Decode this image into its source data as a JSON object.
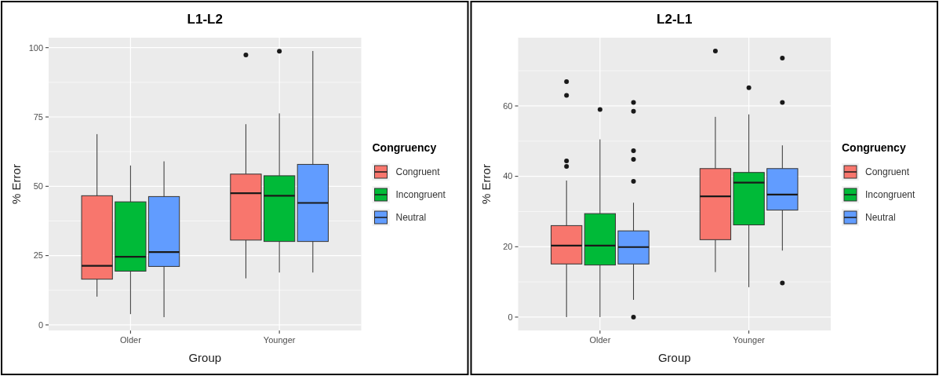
{
  "chart_data": [
    {
      "type": "box",
      "title": "L1-L2",
      "xlabel": "Group",
      "ylabel": "% Error",
      "legend_title": "Congruency",
      "legend": "right",
      "grid": true,
      "categories": [
        "Older",
        "Younger"
      ],
      "ylim": [
        -2,
        103.6
      ],
      "yticks": [
        0,
        25,
        50,
        75,
        100
      ],
      "series": [
        {
          "name": "Congruent",
          "color": "#f8766d",
          "boxes": [
            {
              "low": 10.2,
              "q1": 16.5,
              "median": 21.3,
              "q3": 46.6,
              "high": 68.8
            },
            {
              "low": 16.8,
              "q1": 30.6,
              "median": 47.5,
              "q3": 54.4,
              "high": 72.4,
              "outliers": [
                97.4
              ]
            }
          ]
        },
        {
          "name": "Incongruent",
          "color": "#00ba38",
          "boxes": [
            {
              "low": 3.9,
              "q1": 19.4,
              "median": 24.6,
              "q3": 44.4,
              "high": 57.5
            },
            {
              "low": 18.9,
              "q1": 30.1,
              "median": 46.6,
              "q3": 53.8,
              "high": 76.3,
              "outliers": [
                98.7
              ]
            }
          ]
        },
        {
          "name": "Neutral",
          "color": "#619cff",
          "boxes": [
            {
              "low": 2.8,
              "q1": 21.1,
              "median": 26.3,
              "q3": 46.3,
              "high": 59
            },
            {
              "low": 18.9,
              "q1": 30.1,
              "median": 44,
              "q3": 57.9,
              "high": 98.8
            }
          ]
        }
      ]
    },
    {
      "type": "box",
      "title": "L2-L1",
      "xlabel": "Group",
      "ylabel": "% Error",
      "legend_title": "Congruency",
      "legend": "right",
      "grid": true,
      "categories": [
        "Older",
        "Younger"
      ],
      "ylim": [
        -3.8,
        79.4
      ],
      "yticks": [
        0,
        20,
        40,
        60
      ],
      "series": [
        {
          "name": "Congruent",
          "color": "#f8766d",
          "boxes": [
            {
              "low": 0,
              "q1": 15.1,
              "median": 20.3,
              "q3": 26,
              "high": 38.8,
              "outliers": [
                66.9,
                63,
                44.4,
                42.8
              ]
            },
            {
              "low": 12.8,
              "q1": 22,
              "median": 34.3,
              "q3": 42.2,
              "high": 56.9,
              "outliers": [
                75.6
              ]
            }
          ]
        },
        {
          "name": "Incongruent",
          "color": "#00ba38",
          "boxes": [
            {
              "low": 0,
              "q1": 14.8,
              "median": 20.3,
              "q3": 29.4,
              "high": 50.5,
              "outliers": [
                59
              ]
            },
            {
              "low": 8.5,
              "q1": 26.2,
              "median": 38.2,
              "q3": 41.1,
              "high": 57.6,
              "outliers": [
                65.2
              ]
            }
          ]
        },
        {
          "name": "Neutral",
          "color": "#619cff",
          "boxes": [
            {
              "low": 4.9,
              "q1": 15.1,
              "median": 19.9,
              "q3": 24.5,
              "high": 32.5,
              "outliers": [
                61,
                58.5,
                47.3,
                44.8,
                38.6,
                0
              ]
            },
            {
              "low": 18.9,
              "q1": 30.4,
              "median": 34.8,
              "q3": 42.2,
              "high": 48.8,
              "outliers": [
                73.6,
                61,
                9.7
              ]
            }
          ]
        }
      ]
    }
  ]
}
